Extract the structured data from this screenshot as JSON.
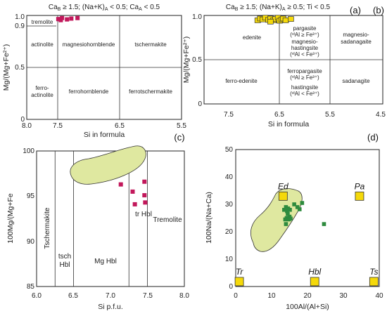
{
  "chart_data": [
    {
      "id": "a",
      "type": "scatter",
      "panel_tag": "(a)",
      "title": "Ca_B ≥ 1.5; (Na+K)_A < 0.5; Ca_A < 0.5",
      "title_parts": {
        "ca": "Ca",
        "ca_sub": "B",
        "t1": " ≥ 1.5; (Na+K)",
        "nak_sub": "A",
        "t2": " < 0.5; Ca",
        "caa_sub": "A",
        "t3": " < 0.5"
      },
      "xlabel": "Si in formula",
      "ylabel": "Mg/(Mg+Fe²⁺)",
      "xticks": [
        "8.0",
        "7.5",
        "6.5",
        "5.5"
      ],
      "yticks": [
        "0",
        "0.5",
        "0.9",
        "1.0"
      ],
      "xlim": [
        8.0,
        5.5
      ],
      "ylim": [
        0,
        1.0
      ],
      "field_labels": [
        "tremolite",
        "actinolite",
        "magnesiohornblende",
        "tschermakite",
        "ferro-",
        "actinolite",
        "ferrohornblende",
        "ferrotschermakite"
      ],
      "points": [
        {
          "x": 7.49,
          "y": 0.965
        },
        {
          "x": 7.45,
          "y": 0.955
        },
        {
          "x": 7.43,
          "y": 0.975
        },
        {
          "x": 7.35,
          "y": 0.962
        },
        {
          "x": 7.28,
          "y": 0.97
        },
        {
          "x": 7.18,
          "y": 0.975
        }
      ],
      "color": "#c2185b"
    },
    {
      "id": "b",
      "type": "scatter",
      "panel_tag": "(b)",
      "title": "Ca_B ≥ 1.5; (Na+K)_A ≥ 0.5; Ti < 0.5",
      "title_parts": {
        "ca": "Ca",
        "ca_sub": "B",
        "t1": " ≥ 1.5; (Na+K)",
        "nak_sub": "A",
        "t2": " ≥ 0.5; Ti < 0.5"
      },
      "xlabel": "Si in formula",
      "ylabel": "Mg/(Mg+Fe²⁺)",
      "xticks": [
        "7.5",
        "6.5",
        "5.5",
        "4.5"
      ],
      "yticks": [
        "0",
        "0.5",
        "1.0"
      ],
      "xlim": [
        8.0,
        4.5
      ],
      "ylim": [
        0,
        1.0
      ],
      "field_labels": [
        "edenite",
        "pargasite",
        "(ᵛᴵAl ≥ Fe³⁺)",
        "magnesio-",
        "hastingsite",
        "(ᵛᴵAl < Fe³⁺)",
        "magnesio-",
        "sadanagaite",
        "ferro-edenite",
        "ferropargasite",
        "(ᵛᴵAl ≥ Fe³⁺)",
        "hastingsite",
        "(ᵛᴵAl < Fe³⁺)",
        "sadanagite"
      ],
      "points": [
        {
          "x": 6.95,
          "y": 0.945
        },
        {
          "x": 6.9,
          "y": 0.965
        },
        {
          "x": 6.85,
          "y": 0.955
        },
        {
          "x": 6.8,
          "y": 0.975
        },
        {
          "x": 6.74,
          "y": 0.95
        },
        {
          "x": 6.7,
          "y": 0.965
        },
        {
          "x": 6.64,
          "y": 0.945
        },
        {
          "x": 6.6,
          "y": 0.96
        },
        {
          "x": 6.55,
          "y": 0.975
        },
        {
          "x": 6.52,
          "y": 0.94
        },
        {
          "x": 6.48,
          "y": 0.955
        },
        {
          "x": 6.45,
          "y": 0.965
        },
        {
          "x": 6.4,
          "y": 0.945
        },
        {
          "x": 6.3,
          "y": 0.96
        },
        {
          "x": 6.7,
          "y": 0.93
        }
      ],
      "color": "#f5d90a"
    },
    {
      "id": "c",
      "type": "scatter",
      "panel_tag": "(c)",
      "xlabel": "Si p.f.u.",
      "ylabel": "100Mg/(Mg+Fe",
      "xticks": [
        "6.0",
        "6.5",
        "7.0",
        "7.5",
        "8.0"
      ],
      "yticks": [
        "85",
        "90",
        "95",
        "100"
      ],
      "xlim": [
        6.0,
        8.0
      ],
      "ylim": [
        85,
        100
      ],
      "dividers_x": [
        6.25,
        6.5,
        7.25,
        7.5
      ],
      "field_labels": [
        "Tschermakite",
        "tsch",
        "Hbl",
        "Mg Hbl",
        "tr Hbl",
        "Tremolite"
      ],
      "points": [
        {
          "x": 7.14,
          "y": 96.3
        },
        {
          "x": 7.3,
          "y": 95.5
        },
        {
          "x": 7.33,
          "y": 94.1
        },
        {
          "x": 7.46,
          "y": 96.6
        },
        {
          "x": 7.46,
          "y": 95.1
        },
        {
          "x": 7.47,
          "y": 94.3
        }
      ],
      "color": "#c2185b",
      "field_fill": "#dfe8a0"
    },
    {
      "id": "d",
      "type": "scatter",
      "panel_tag": "(d)",
      "xlabel": "100Al/(Al+Si)",
      "ylabel": "100Na/(Na+Ca)",
      "xticks": [
        "0",
        "10",
        "20",
        "30",
        "40"
      ],
      "yticks": [
        "0",
        "10",
        "20",
        "30",
        "40",
        "50"
      ],
      "xlim": [
        0,
        40
      ],
      "ylim": [
        0,
        50
      ],
      "endmembers": [
        {
          "label": "Ed",
          "x": 13.2,
          "y": 33.0
        },
        {
          "label": "Pa",
          "x": 34.5,
          "y": 33.0
        },
        {
          "label": "Tr",
          "x": 1.0,
          "y": 1.8
        },
        {
          "label": "Hbl",
          "x": 22.0,
          "y": 1.8
        },
        {
          "label": "Ts",
          "x": 38.5,
          "y": 1.8
        }
      ],
      "points": [
        {
          "x": 13.5,
          "y": 28.0
        },
        {
          "x": 14.0,
          "y": 29.0
        },
        {
          "x": 14.3,
          "y": 27.5
        },
        {
          "x": 14.6,
          "y": 28.5
        },
        {
          "x": 15.1,
          "y": 28.0
        },
        {
          "x": 14.5,
          "y": 26.5
        },
        {
          "x": 15.0,
          "y": 25.5
        },
        {
          "x": 14.2,
          "y": 25.0
        },
        {
          "x": 13.8,
          "y": 24.5
        },
        {
          "x": 14.8,
          "y": 24.5
        },
        {
          "x": 15.3,
          "y": 24.8
        },
        {
          "x": 14.0,
          "y": 22.8
        },
        {
          "x": 16.3,
          "y": 30.0
        },
        {
          "x": 17.2,
          "y": 29.0
        },
        {
          "x": 18.5,
          "y": 30.5
        },
        {
          "x": 17.8,
          "y": 28.2
        },
        {
          "x": 24.6,
          "y": 22.8
        }
      ],
      "color": "#2e8b3e",
      "field_fill": "#dfe8a0",
      "endmember_color": "#f5d90a"
    }
  ]
}
